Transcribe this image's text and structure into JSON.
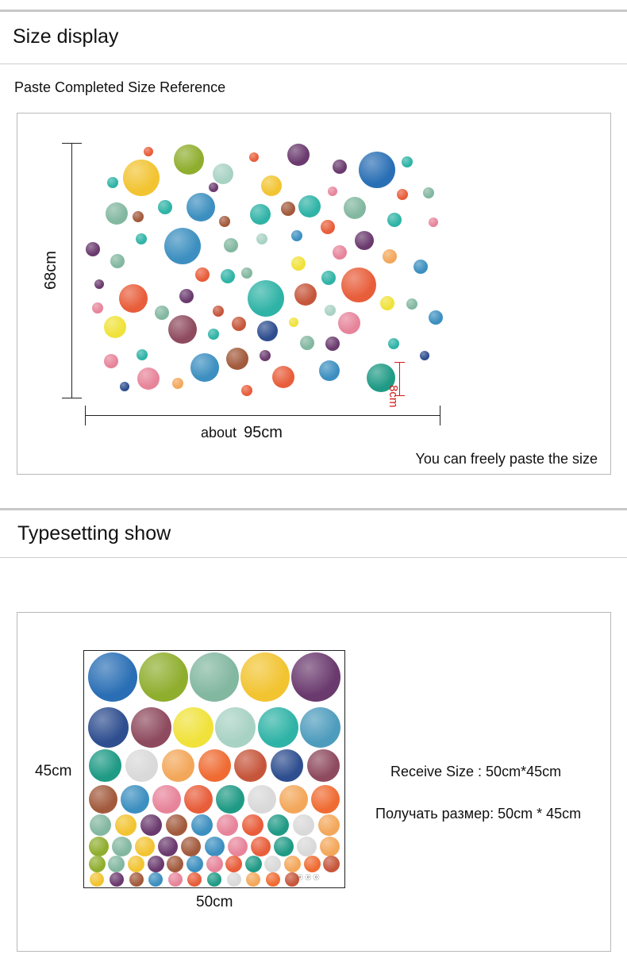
{
  "size_display": {
    "title": "Size display",
    "subtitle": "Paste Completed Size Reference",
    "height_label": "68cm",
    "width_label_prefix": "about",
    "width_label_value": "95cm",
    "dot_size_label": "8cm",
    "note": "You can freely paste the size"
  },
  "typesetting": {
    "title": "Typesetting show",
    "height_label": "45cm",
    "width_label": "50cm",
    "receive_size_en": "Receive Size : 50cm*45cm",
    "receive_size_ru": "Получать размер: 50cm * 45cm",
    "logo_marks": "ⓞ ⓞ ⓞ"
  },
  "colors": {
    "palette": [
      "#2a6fb5",
      "#f2c431",
      "#3c8fc0",
      "#1f9a85",
      "#ef6b32",
      "#8e4a5e",
      "#2fb3a6",
      "#8fae2e",
      "#6a3a6e",
      "#e7849a",
      "#d9d9d9",
      "#c6563b",
      "#f0e23a",
      "#4e9cbd",
      "#82b7a0",
      "#a25a3c",
      "#e85d3a",
      "#f3a75a",
      "#2e4e8f",
      "#a8d2c3"
    ],
    "dimension_red": "#d31818"
  }
}
